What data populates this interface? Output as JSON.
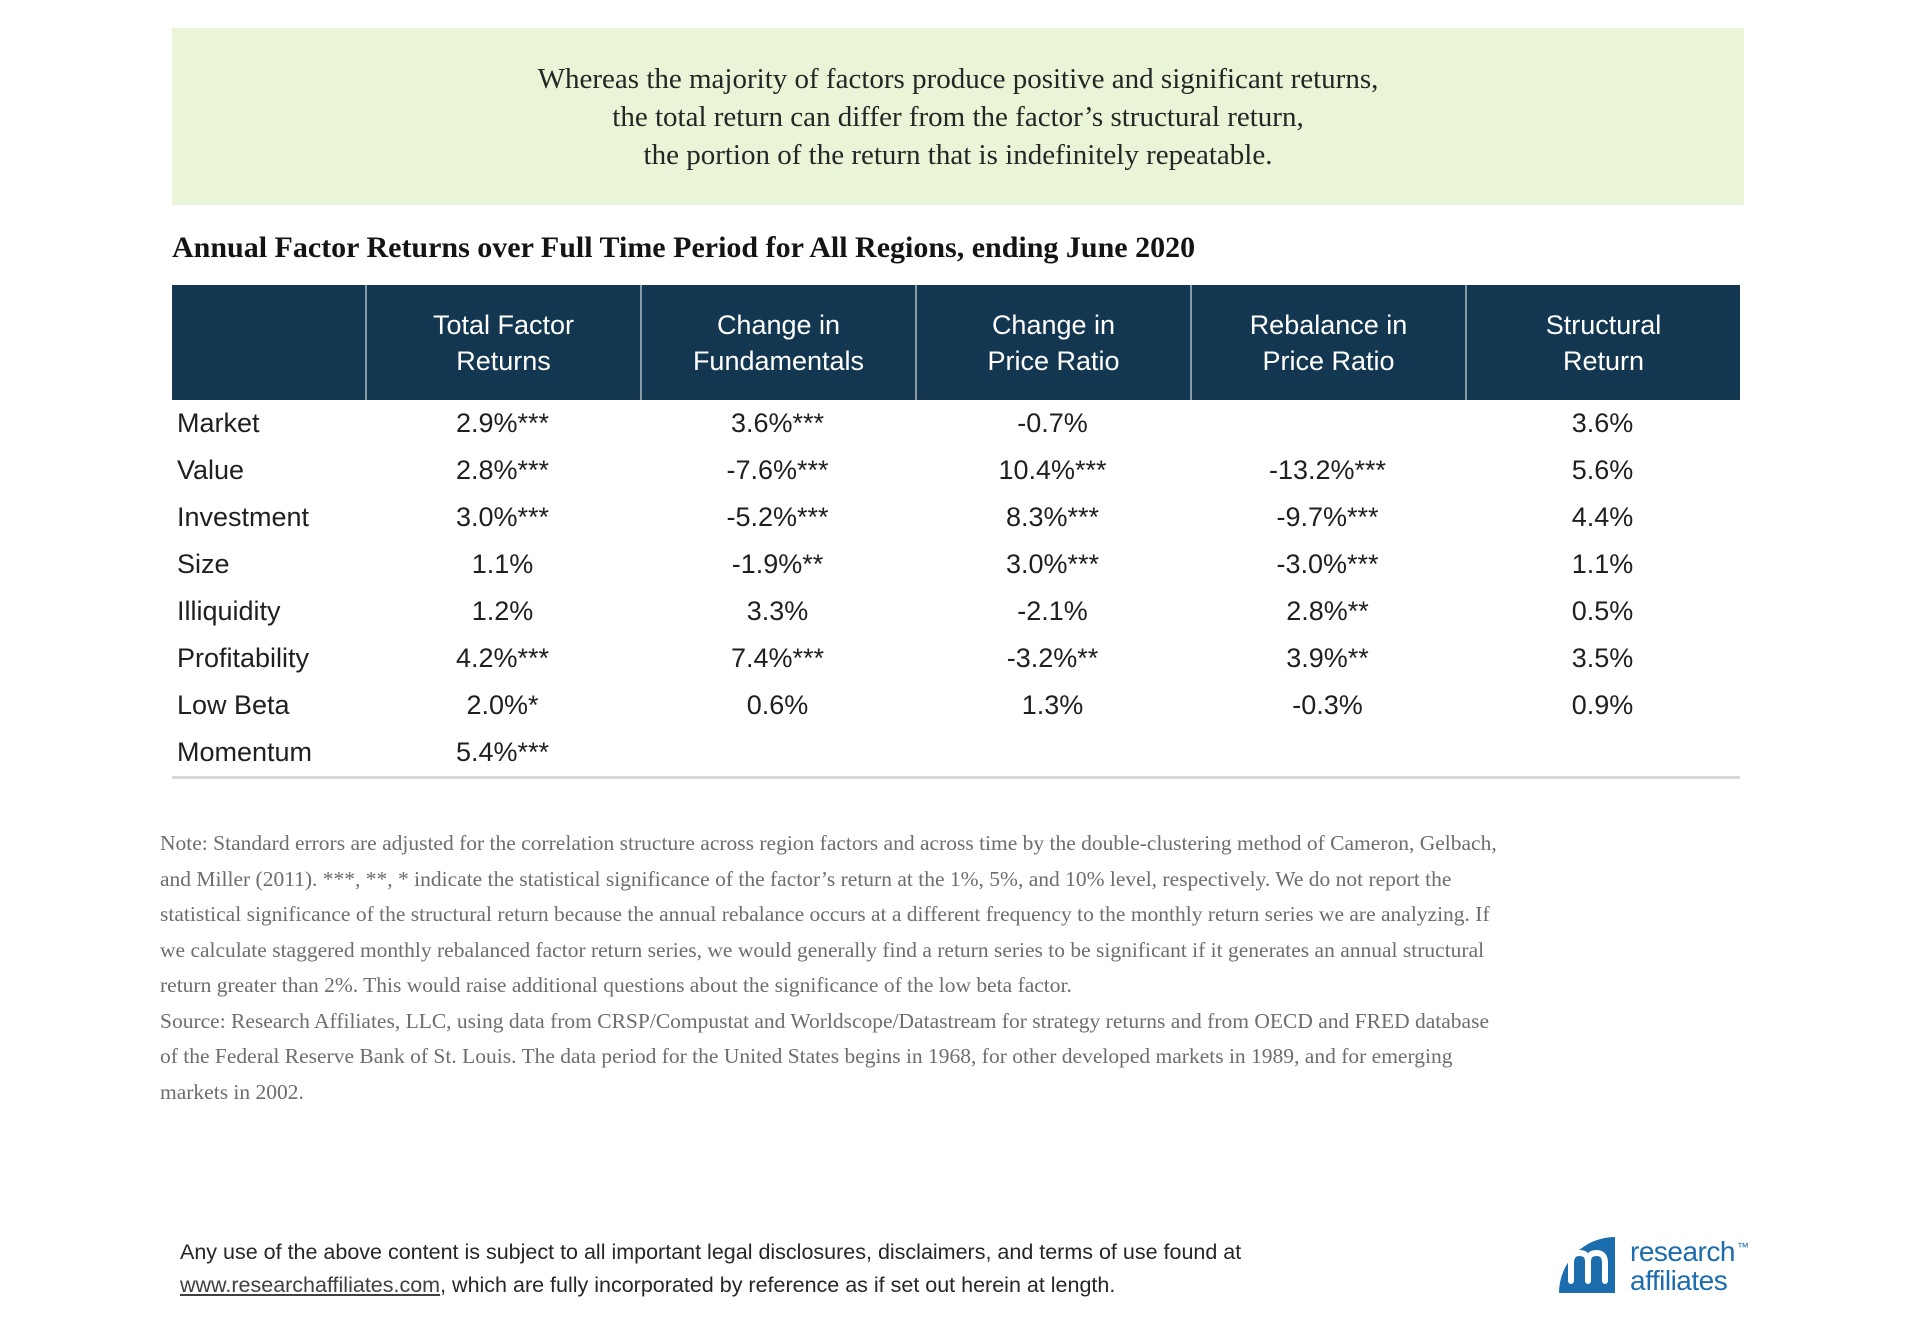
{
  "colors": {
    "callout_bg": "#eaf4d7",
    "header_bg": "#143751",
    "logo_blue": "#1b6dad",
    "table_rule": "#d9d9d9",
    "note_gray": "#6d6d6d"
  },
  "callout": {
    "line1": "Whereas the majority of factors produce positive and significant returns,",
    "line2": "the total return can differ from the factor’s structural return,",
    "line3": "the portion of the return that is indefinitely repeatable."
  },
  "title": "Annual Factor Returns over Full Time Period for All Regions, ending June 2020",
  "table": {
    "columns": [
      [
        "Total Factor",
        "Returns"
      ],
      [
        "Change in",
        "Fundamentals"
      ],
      [
        "Change in",
        "Price Ratio"
      ],
      [
        "Rebalance in",
        "Price Ratio"
      ],
      [
        "Structural",
        "Return"
      ]
    ],
    "rows": [
      {
        "label": "Market",
        "cells": [
          "2.9%***",
          "3.6%***",
          "-0.7%",
          "",
          "3.6%"
        ]
      },
      {
        "label": "Value",
        "cells": [
          "2.8%***",
          "-7.6%***",
          "10.4%***",
          "-13.2%***",
          "5.6%"
        ]
      },
      {
        "label": "Investment",
        "cells": [
          "3.0%***",
          "-5.2%***",
          "8.3%***",
          "-9.7%***",
          "4.4%"
        ]
      },
      {
        "label": "Size",
        "cells": [
          "1.1%",
          "-1.9%**",
          "3.0%***",
          "-3.0%***",
          "1.1%"
        ]
      },
      {
        "label": "Illiquidity",
        "cells": [
          "1.2%",
          "3.3%",
          "-2.1%",
          "2.8%**",
          "0.5%"
        ]
      },
      {
        "label": "Profitability",
        "cells": [
          "4.2%***",
          "7.4%***",
          "-3.2%**",
          "3.9%**",
          "3.5%"
        ]
      },
      {
        "label": "Low Beta",
        "cells": [
          "2.0%*",
          "0.6%",
          "1.3%",
          "-0.3%",
          "0.9%"
        ]
      },
      {
        "label": "Momentum",
        "cells": [
          "5.4%***",
          "",
          "",
          "",
          ""
        ]
      }
    ]
  },
  "notes": {
    "note": "Note: Standard errors are adjusted for the correlation structure across region factors and across time by the double-clustering method of Cameron, Gelbach, and Miller (2011). ***, **, * indicate the statistical significance of the factor’s return at the 1%, 5%, and 10% level, respectively. We do not report the statistical significance of the structural return because the annual rebalance occurs at a different frequency to the monthly return series we are analyzing. If we calculate staggered monthly rebalanced factor return series, we would generally find a return series to be significant if it generates an annual structural return greater than 2%. This would raise additional questions about the significance of the low beta factor.",
    "source": "Source: Research Affiliates, LLC, using data from CRSP/Compustat and Worldscope/Datastream for strategy returns and from OECD and FRED database of the Federal Reserve Bank of St. Louis. The data period for the United States begins in 1968, for other developed markets in 1989, and for emerging markets in 2002."
  },
  "footer": {
    "line1": "Any use of the above content is subject to all important legal disclosures, disclaimers, and terms of use found at",
    "link": "www.researchaffiliates.com",
    "line2_rest": ", which are fully incorporated by reference as if set out herein at length."
  },
  "logo": {
    "word1": "research",
    "word2": "affiliates",
    "tm": "™"
  }
}
